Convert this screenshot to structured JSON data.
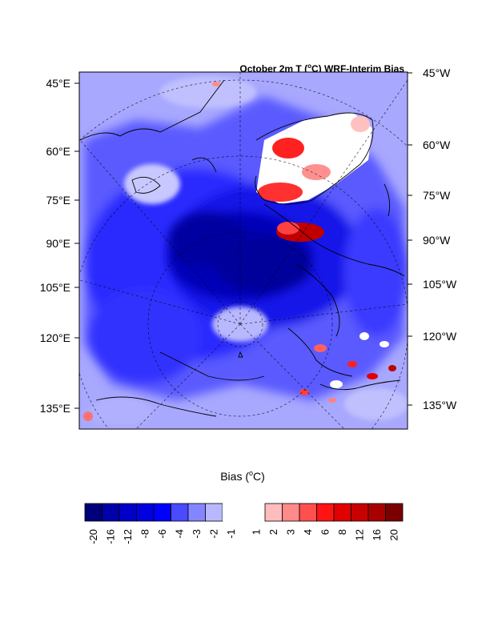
{
  "map": {
    "title_prefix": "October 2m T (",
    "title_degree": "o",
    "title_suffix": "C) WRF-Interim Bias",
    "left_lon_labels": [
      "45°E",
      "60°E",
      "75°E",
      "90°E",
      "105°E",
      "120°E",
      "135°E"
    ],
    "right_lon_labels": [
      "45°W",
      "60°W",
      "75°W",
      "90°W",
      "105°W",
      "120°W",
      "135°W"
    ],
    "features": [
      "coastlines",
      "dashed-graticule",
      "filled-contours"
    ]
  },
  "colorbar": {
    "title_prefix": "Bias (",
    "title_degree": "o",
    "title_suffix": "C)",
    "tick_labels": [
      "-20",
      "-16",
      "-12",
      "-8",
      "-6",
      "-4",
      "-3",
      "-2",
      "-1",
      "1",
      "2",
      "3",
      "4",
      "6",
      "8",
      "12",
      "16",
      "20"
    ],
    "colors": [
      "#00007a",
      "#0000a8",
      "#0000c8",
      "#0000e0",
      "#0000ff",
      "#4a4aff",
      "#8585ff",
      "#b8b8ff",
      "#ffffff",
      "#ffffff",
      "#ffbcbc",
      "#ff8a8a",
      "#ff5050",
      "#ff1414",
      "#e00000",
      "#c80000",
      "#a80000",
      "#7a0000"
    ]
  },
  "colors": {
    "deep_negative": "#0000a0",
    "negative": "#2a2aff",
    "weak_negative": "#a8a8ff",
    "positive": "#ff2020",
    "strong_positive": "#b00000"
  }
}
